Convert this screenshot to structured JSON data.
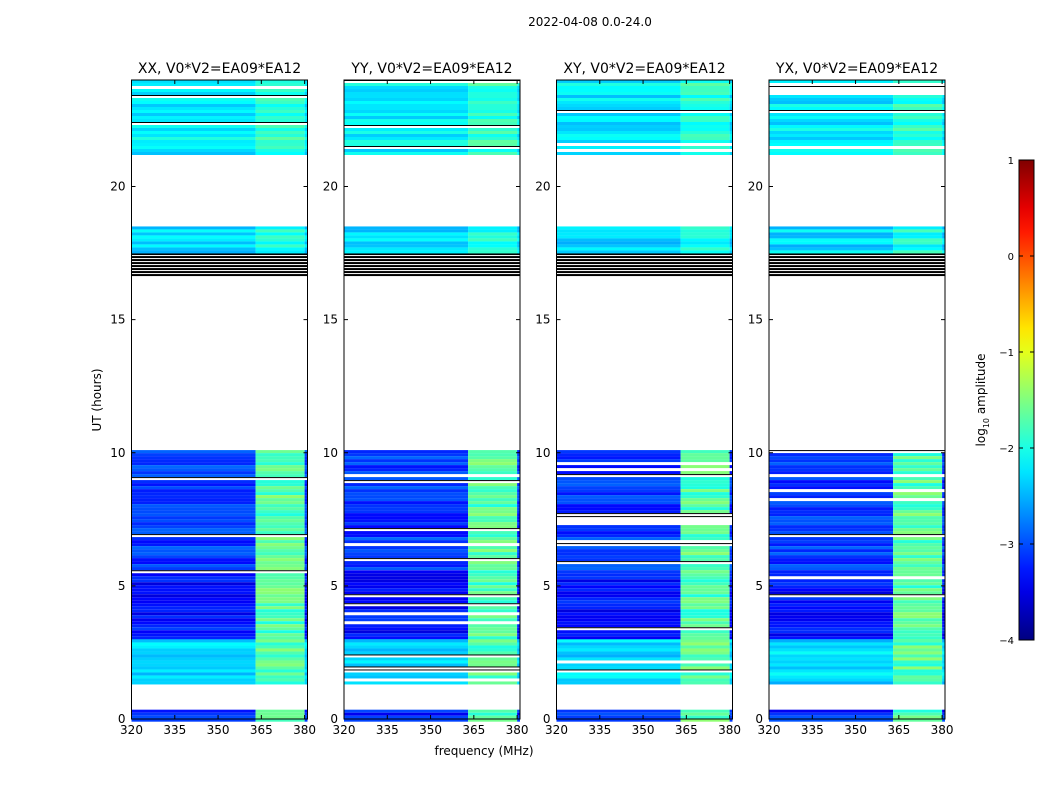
{
  "chart_data": {
    "type": "heatmap",
    "suptitle": "2022-04-08 0.0-24.0",
    "xlabel": "frequency (MHz)",
    "ylabel": "UT (hours)",
    "xlim": [
      320,
      381
    ],
    "ylim": [
      0,
      24
    ],
    "xticks": [
      320,
      335,
      350,
      365,
      380
    ],
    "yticks": [
      0,
      5,
      10,
      15,
      20
    ],
    "colorbar": {
      "label": "log10 amplitude",
      "label_base": "log",
      "label_sub": "10",
      "label_rest": " amplitude",
      "range": [
        -4,
        1
      ],
      "ticks": [
        {
          "value": 1,
          "label": "1"
        },
        {
          "value": 0,
          "label": "0"
        },
        {
          "value": -1,
          "label": "−1"
        },
        {
          "value": -2,
          "label": "−2"
        },
        {
          "value": -3,
          "label": "−3"
        },
        {
          "value": -4,
          "label": "−4"
        }
      ],
      "colormap": "jet"
    },
    "panels": [
      {
        "title": "XX, V0*V2=EA09*EA12",
        "pol": "XX"
      },
      {
        "title": "YY, V0*V2=EA09*EA12",
        "pol": "YY"
      },
      {
        "title": "XY, V0*V2=EA09*EA12",
        "pol": "XY"
      },
      {
        "title": "YX, V0*V2=EA09*EA12",
        "pol": "YX"
      }
    ],
    "time_blocks": [
      {
        "ut_range": [
          0.0,
          0.35
        ],
        "level": -3.2,
        "note": "mostly flagged"
      },
      {
        "ut_range": [
          1.3,
          3.1
        ],
        "level": -2.3
      },
      {
        "ut_range": [
          3.1,
          5.7
        ],
        "level": -3.3
      },
      {
        "ut_range": [
          5.7,
          10.1
        ],
        "level": -3.1
      },
      {
        "ut_range": [
          16.6,
          17.5
        ],
        "level": null,
        "note": "flagged (black)"
      },
      {
        "ut_range": [
          17.5,
          18.5
        ],
        "level": -2.3
      },
      {
        "ut_range": [
          21.2,
          24.0
        ],
        "level": -2.2
      }
    ],
    "rfi_band_mhz": [
      363,
      380
    ],
    "rfi_level": -1.7
  }
}
